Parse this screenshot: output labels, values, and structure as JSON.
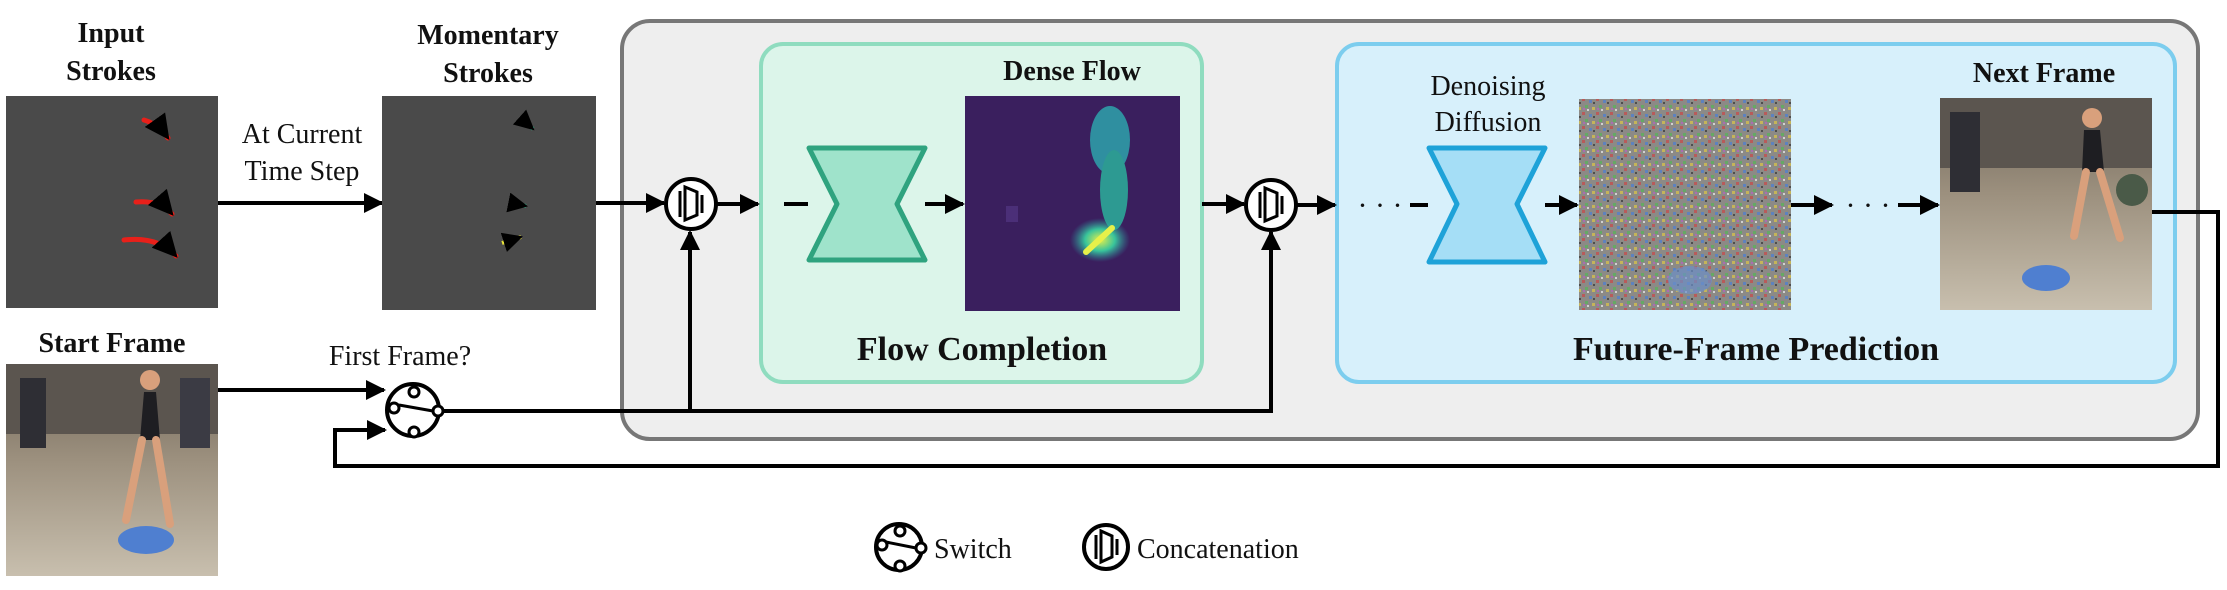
{
  "labels": {
    "input_strokes_line1": "Input",
    "input_strokes_line2": "Strokes",
    "momentary_strokes_line1": "Momentary",
    "momentary_strokes_line2": "Strokes",
    "at_current_line1": "At Current",
    "at_current_line2": "Time Step",
    "start_frame": "Start Frame",
    "first_frame": "First Frame?",
    "dense_flow": "Dense Flow",
    "flow_completion": "Flow Completion",
    "denoising_line1": "Denoising",
    "denoising_line2": "Diffusion",
    "next_frame": "Next Frame",
    "future_frame_prediction": "Future-Frame Prediction",
    "dots_left": "· · ·",
    "dots_right": "· · ·"
  },
  "legend": {
    "switch_label": "Switch",
    "concatenation_label": "Concatenation",
    "switch_icon": "switch-icon",
    "concat_icon": "concatenation-icon"
  },
  "colors": {
    "outer_box_fill": "#eeeeee",
    "outer_box_stroke": "#777777",
    "flow_box_fill": "#dcf5ea",
    "flow_box_stroke": "#8fdcbf",
    "flow_unet_fill": "#9fe3cb",
    "flow_unet_stroke": "#2fa37f",
    "future_box_fill": "#d7f0fb",
    "future_box_stroke": "#7ccdee",
    "diffusion_unet_fill": "#a5def6",
    "diffusion_unet_stroke": "#1ea2d8",
    "stroke_panel": "#4a4a4a",
    "red_stroke": "#e8201a"
  }
}
